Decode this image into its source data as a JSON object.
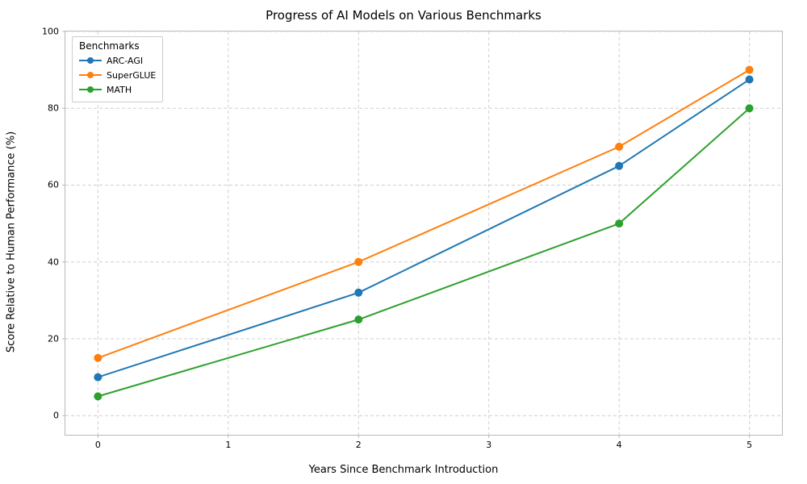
{
  "chart": {
    "type": "line",
    "title": "Progress of AI Models on Various Benchmarks",
    "title_fontsize": 15,
    "xlabel": "Years Since Benchmark Introduction",
    "ylabel": "Score Relative to Human Performance (%)",
    "label_fontsize": 13,
    "tick_fontsize": 11,
    "xlim": [
      -0.25,
      5.25
    ],
    "ylim": [
      -5,
      100
    ],
    "xticks": [
      0,
      1,
      2,
      3,
      4,
      5
    ],
    "yticks": [
      0,
      20,
      40,
      60,
      80,
      100
    ],
    "background_color": "#ffffff",
    "grid_color": "#cfcfcf",
    "grid_dash": "4,3",
    "axis_color": "#b8b8b8",
    "line_width": 2,
    "marker_size": 5,
    "legend": {
      "title": "Benchmarks",
      "position": "upper-left"
    },
    "series": [
      {
        "name": "ARC-AGI",
        "color": "#1f77b4",
        "marker": "circle",
        "x": [
          0,
          2,
          4,
          5
        ],
        "y": [
          10,
          32,
          65,
          87.5
        ]
      },
      {
        "name": "SuperGLUE",
        "color": "#ff7f0e",
        "marker": "circle",
        "x": [
          0,
          2,
          4,
          5
        ],
        "y": [
          15,
          40,
          70,
          90
        ]
      },
      {
        "name": "MATH",
        "color": "#2ca02c",
        "marker": "circle",
        "x": [
          0,
          2,
          4,
          5
        ],
        "y": [
          5,
          25,
          50,
          80
        ]
      }
    ]
  }
}
